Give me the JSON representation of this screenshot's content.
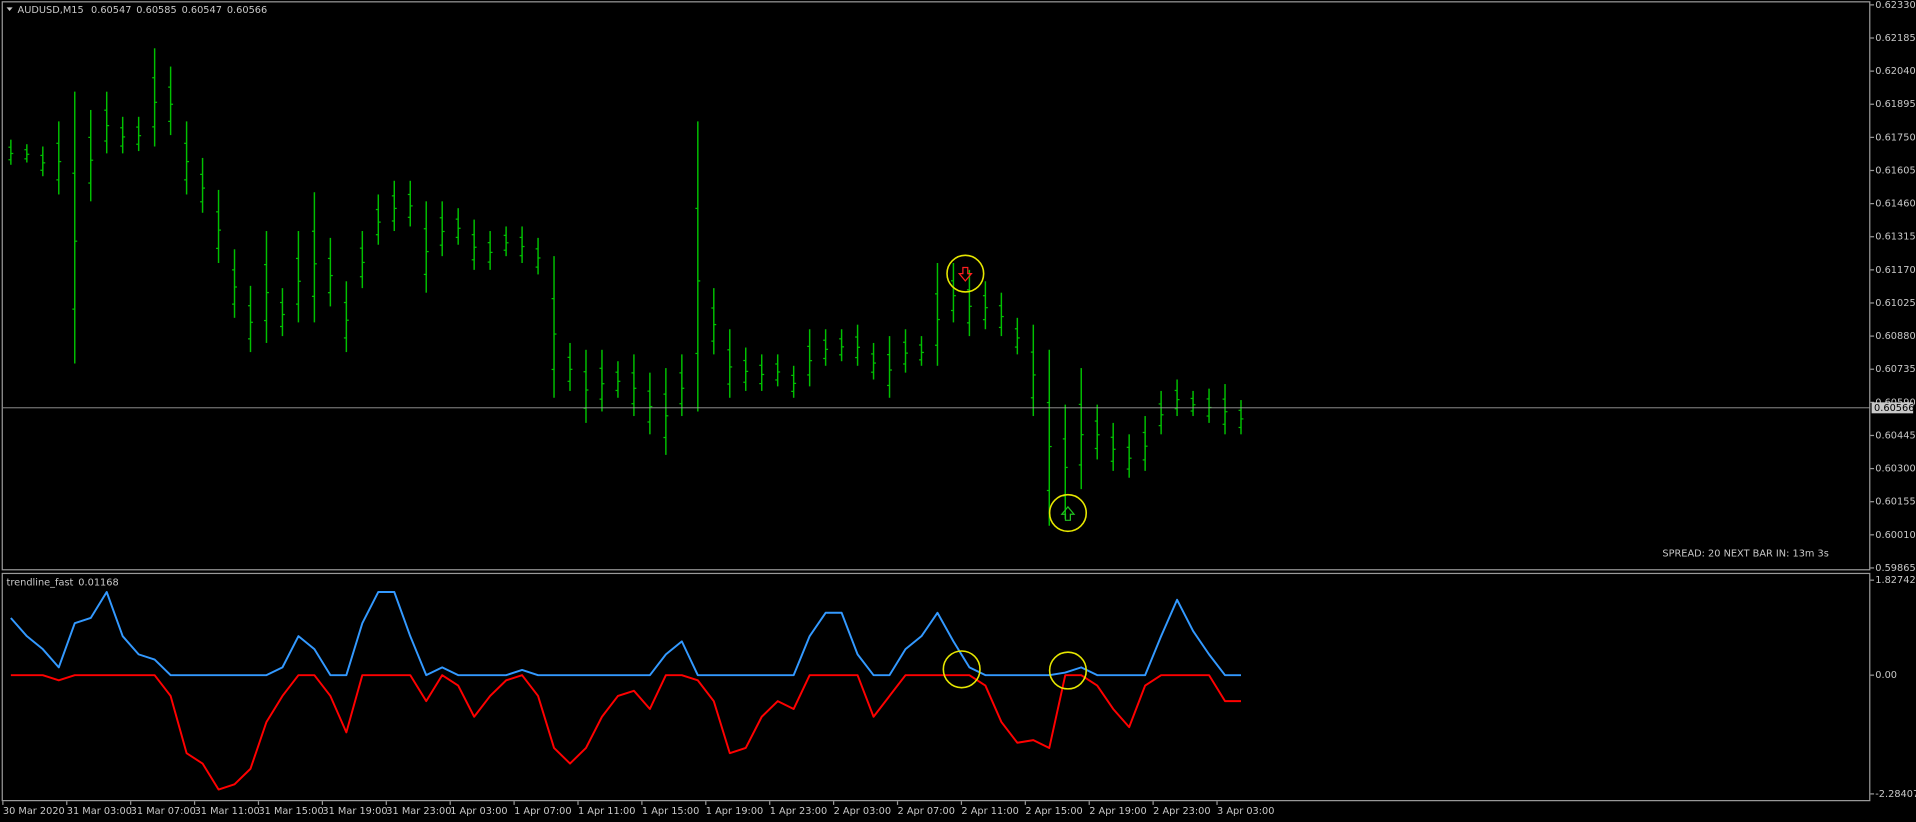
{
  "chart_data": [
    {
      "type": "ohlc",
      "title": "AUDUSD,M15",
      "ohlc": [
        0.60547,
        0.60585,
        0.60547,
        0.60566
      ],
      "color": "#00c000",
      "high": [
        0.6174,
        0.6172,
        0.6171,
        0.6182,
        0.6195,
        0.6187,
        0.6195,
        0.6184,
        0.6184,
        0.6214,
        0.6206,
        0.6182,
        0.6166,
        0.6152,
        0.6126,
        0.611,
        0.6134,
        0.6109,
        0.6134,
        0.6151,
        0.6131,
        0.6112,
        0.6134,
        0.615,
        0.6156,
        0.6156,
        0.6147,
        0.6147,
        0.6144,
        0.6139,
        0.6134,
        0.6136,
        0.6136,
        0.6131,
        0.6123,
        0.6085,
        0.6082,
        0.6082,
        0.6077,
        0.608,
        0.6072,
        0.6074,
        0.608,
        0.6182,
        0.6109,
        0.6091,
        0.6083,
        0.608,
        0.608,
        0.6075,
        0.6091,
        0.6091,
        0.6091,
        0.6093,
        0.6085,
        0.6088,
        0.6091,
        0.6088,
        0.612,
        0.612,
        0.6117,
        0.6112,
        0.6107,
        0.6096,
        0.6093,
        0.6082,
        0.6058,
        0.6074,
        0.6058,
        0.605,
        0.6045,
        0.6053,
        0.6064,
        0.6069,
        0.6064,
        0.6065,
        0.6067,
        0.606
      ],
      "low": [
        0.6163,
        0.6164,
        0.6158,
        0.615,
        0.6076,
        0.6147,
        0.6168,
        0.6168,
        0.6169,
        0.6171,
        0.6176,
        0.615,
        0.6142,
        0.612,
        0.6096,
        0.6081,
        0.6085,
        0.6088,
        0.6094,
        0.6094,
        0.6101,
        0.6081,
        0.6109,
        0.6128,
        0.6134,
        0.6136,
        0.6107,
        0.6123,
        0.6128,
        0.6117,
        0.6117,
        0.6123,
        0.612,
        0.6115,
        0.6061,
        0.6064,
        0.605,
        0.6055,
        0.6061,
        0.6053,
        0.6045,
        0.6036,
        0.6053,
        0.6055,
        0.608,
        0.6061,
        0.6064,
        0.6064,
        0.6066,
        0.6061,
        0.6066,
        0.6075,
        0.6077,
        0.6075,
        0.6069,
        0.6061,
        0.6072,
        0.6075,
        0.6075,
        0.6094,
        0.6088,
        0.6091,
        0.6088,
        0.608,
        0.6053,
        0.6005,
        0.6008,
        0.6021,
        0.6034,
        0.6029,
        0.6026,
        0.6029,
        0.6045,
        0.6053,
        0.6053,
        0.605,
        0.6045,
        0.6045
      ],
      "last_price": 0.60566,
      "ylim": [
        0.59865,
        0.6233
      ],
      "yticks": [
        {
          "value": 0.6233,
          "label": "0.62330"
        },
        0.62185,
        {
          "value": 0.6204,
          "label": "0.62040"
        },
        0.61895,
        {
          "value": 0.6175,
          "label": "0.61750"
        },
        0.61605,
        {
          "value": 0.6146,
          "label": "0.61460"
        },
        0.61315,
        {
          "value": 0.6117,
          "label": "0.61170"
        },
        0.61025,
        {
          "value": 0.6088,
          "label": "0.60880"
        },
        0.60735,
        {
          "value": 0.6059,
          "label": "0.60590"
        },
        0.60445,
        {
          "value": 0.603,
          "label": "0.60300"
        },
        0.60155,
        {
          "value": 0.6001,
          "label": "0.60010"
        },
        0.59865
      ],
      "annotation": "SPREAD: 20  NEXT BAR IN: 13m 3s"
    },
    {
      "type": "line",
      "title": "trendline_fast",
      "last_value": 0.01168,
      "categories": [
        "30 Mar 2020",
        null,
        null,
        null,
        "31 Mar 03:00",
        null,
        null,
        null,
        "31 Mar 07:00",
        null,
        null,
        null,
        "31 Mar 11:00",
        null,
        null,
        null,
        "31 Mar 15:00",
        null,
        null,
        null,
        "31 Mar 19:00",
        null,
        null,
        null,
        "31 Mar 23:00",
        null,
        null,
        null,
        "1 Apr 03:00",
        null,
        null,
        null,
        "1 Apr 07:00",
        null,
        null,
        null,
        "1 Apr 11:00",
        null,
        null,
        null,
        "1 Apr 15:00",
        null,
        null,
        null,
        "1 Apr 19:00",
        null,
        null,
        null,
        "1 Apr 23:00",
        null,
        null,
        null,
        "2 Apr 03:00",
        null,
        null,
        null,
        "2 Apr 07:00",
        null,
        null,
        null,
        "2 Apr 11:00",
        null,
        null,
        null,
        "2 Apr 15:00",
        null,
        null,
        null,
        "2 Apr 19:00",
        null,
        null,
        null,
        "2 Apr 23:00",
        null,
        null,
        null,
        "3 Apr 03:00",
        null
      ],
      "series": [
        {
          "color": "#3399ff",
          "values": [
            1.1,
            0.75,
            0.5,
            0.15,
            1.0,
            1.1,
            1.6,
            0.75,
            0.4,
            0.3,
            0,
            0,
            0,
            0,
            0,
            0,
            0,
            0.15,
            0.75,
            0.5,
            0,
            0,
            1.0,
            1.6,
            1.6,
            0.75,
            0,
            0.15,
            0,
            0,
            0,
            0,
            0.1,
            0,
            0,
            0,
            0,
            0,
            0,
            0,
            0,
            0.4,
            0.65,
            0,
            0,
            0,
            0,
            0,
            0,
            0,
            0.75,
            1.2,
            1.2,
            0.4,
            0,
            0,
            0.5,
            0.75,
            1.2,
            0.65,
            0.15,
            0,
            0,
            0,
            0,
            0,
            0.05,
            0.15,
            0,
            0,
            0,
            0,
            0.75,
            1.45,
            0.85,
            0.4,
            0,
            0
          ]
        },
        {
          "color": "#ff0000",
          "values": [
            0,
            0,
            0,
            -0.1,
            0,
            0,
            0,
            0,
            0,
            0,
            -0.4,
            -1.5,
            -1.7,
            -2.2,
            -2.1,
            -1.8,
            -0.9,
            -0.4,
            0,
            0,
            -0.4,
            -1.1,
            0,
            0,
            0,
            0,
            -0.5,
            0,
            -0.2,
            -0.8,
            -0.4,
            -0.1,
            0,
            -0.4,
            -1.4,
            -1.7,
            -1.4,
            -0.8,
            -0.4,
            -0.3,
            -0.65,
            0,
            0,
            -0.1,
            -0.5,
            -1.5,
            -1.4,
            -0.8,
            -0.5,
            -0.65,
            0,
            0,
            0,
            0,
            -0.8,
            -0.4,
            0,
            0,
            0,
            0,
            0,
            -0.2,
            -0.9,
            -1.3,
            -1.25,
            -1.4,
            0,
            0,
            -0.2,
            -0.65,
            -1.0,
            -0.2,
            0,
            0,
            0,
            0,
            -0.5,
            -0.5
          ]
        }
      ],
      "ylim": [
        -2.28407,
        1.82742
      ],
      "yticks": [
        -2.28407,
        {
          "value": 0,
          "label": "0.00"
        },
        1.82742
      ]
    }
  ]
}
